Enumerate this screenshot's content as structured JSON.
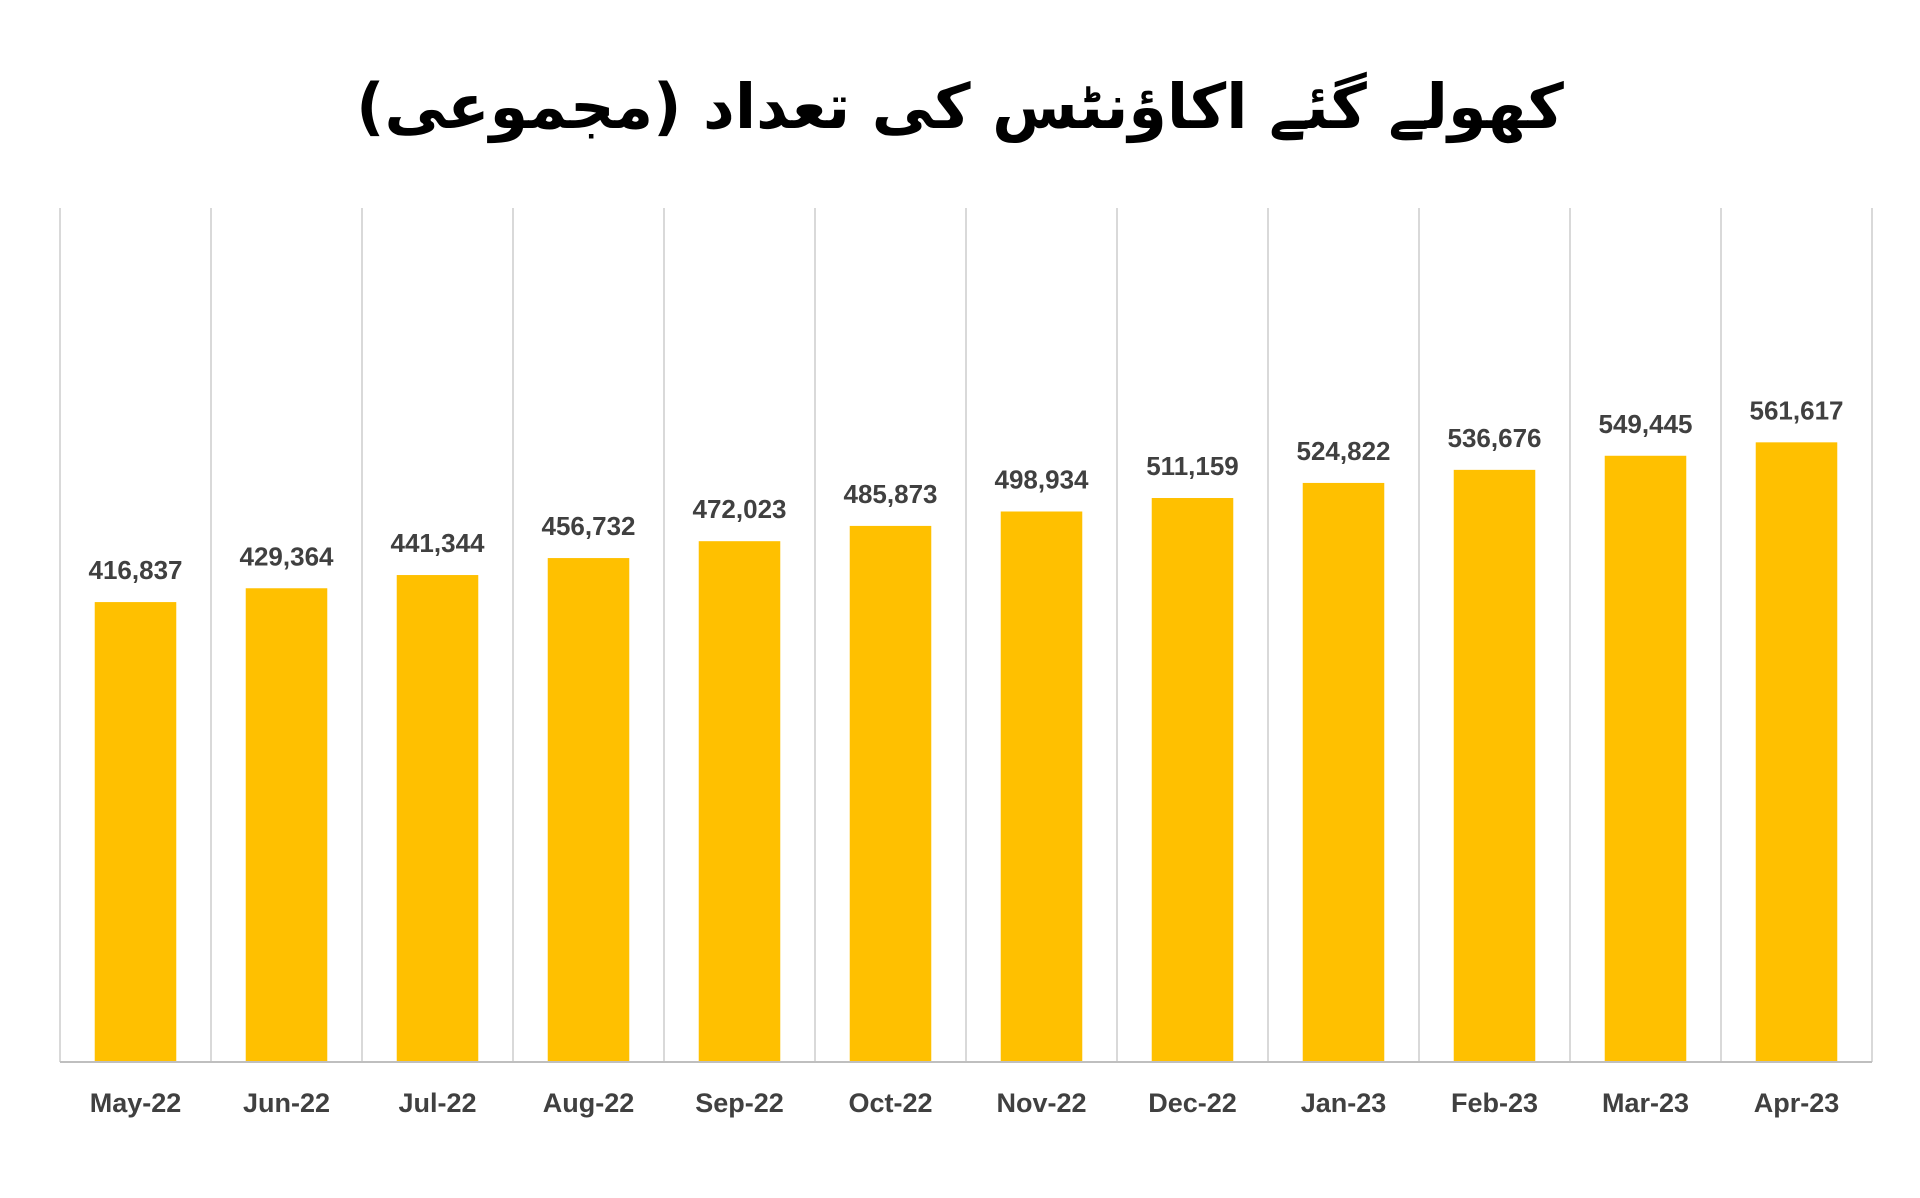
{
  "chart_data": {
    "type": "bar",
    "title": "کھولے گئے اکاؤنٹس کی تعداد (مجموعی)",
    "xlabel": "",
    "ylabel": "",
    "categories": [
      "May-22",
      "Jun-22",
      "Jul-22",
      "Aug-22",
      "Sep-22",
      "Oct-22",
      "Nov-22",
      "Dec-22",
      "Jan-23",
      "Feb-23",
      "Mar-23",
      "Apr-23"
    ],
    "values": [
      416837,
      429364,
      441344,
      456732,
      472023,
      485873,
      498934,
      511159,
      524822,
      536676,
      549445,
      561617
    ],
    "value_labels": [
      "416,837",
      "429,364",
      "441,344",
      "456,732",
      "472,023",
      "485,873",
      "498,934",
      "511,159",
      "524,822",
      "536,676",
      "549,445",
      "561,617"
    ],
    "ylim": [
      0,
      600000
    ],
    "grid": "vertical separators between categories",
    "legend": "none",
    "colors": {
      "bar": "#FFC000",
      "grid": "#D9D9D9",
      "axis": "#BFBFBF",
      "label": "#404040"
    }
  }
}
